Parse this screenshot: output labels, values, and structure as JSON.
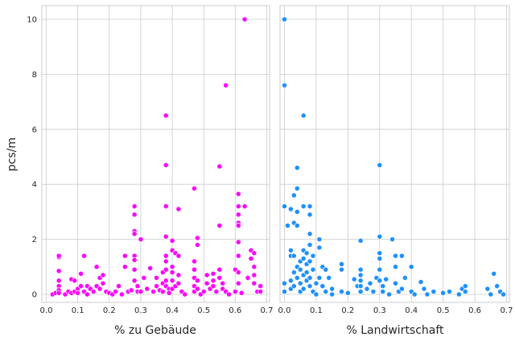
{
  "chart_data": [
    {
      "type": "scatter",
      "xlabel": "% zu Gebäude",
      "ylabel": "pcs/m",
      "xlim": [
        0.0,
        0.7
      ],
      "ylim": [
        0,
        10
      ],
      "x_ticks": [
        "0.0",
        "0.1",
        "0.2",
        "0.3",
        "0.4",
        "0.5",
        "0.6",
        "0.7"
      ],
      "y_ticks": [
        "0",
        "2",
        "4",
        "6",
        "8",
        "10"
      ],
      "grid": true,
      "color": "#ff00ff",
      "points": [
        [
          0.02,
          0.0
        ],
        [
          0.03,
          0.05
        ],
        [
          0.04,
          1.35
        ],
        [
          0.04,
          1.4
        ],
        [
          0.04,
          0.85
        ],
        [
          0.04,
          0.5
        ],
        [
          0.04,
          0.3
        ],
        [
          0.04,
          0.15
        ],
        [
          0.04,
          0.05
        ],
        [
          0.06,
          0.0
        ],
        [
          0.07,
          0.1
        ],
        [
          0.08,
          0.55
        ],
        [
          0.08,
          0.05
        ],
        [
          0.09,
          0.1
        ],
        [
          0.09,
          0.5
        ],
        [
          0.1,
          0.2
        ],
        [
          0.1,
          0.05
        ],
        [
          0.11,
          0.3
        ],
        [
          0.11,
          0.75
        ],
        [
          0.12,
          1.4
        ],
        [
          0.12,
          0.1
        ],
        [
          0.13,
          0.3
        ],
        [
          0.13,
          0.0
        ],
        [
          0.14,
          0.2
        ],
        [
          0.15,
          0.1
        ],
        [
          0.16,
          1.0
        ],
        [
          0.16,
          0.3
        ],
        [
          0.17,
          0.6
        ],
        [
          0.17,
          0.2
        ],
        [
          0.18,
          0.7
        ],
        [
          0.18,
          0.4
        ],
        [
          0.19,
          0.1
        ],
        [
          0.2,
          0.05
        ],
        [
          0.21,
          0.0
        ],
        [
          0.22,
          0.1
        ],
        [
          0.23,
          0.3
        ],
        [
          0.24,
          0.0
        ],
        [
          0.25,
          1.4
        ],
        [
          0.25,
          1.0
        ],
        [
          0.26,
          0.1
        ],
        [
          0.27,
          0.15
        ],
        [
          0.28,
          3.2
        ],
        [
          0.28,
          2.9
        ],
        [
          0.28,
          2.3
        ],
        [
          0.28,
          2.2
        ],
        [
          0.28,
          1.4
        ],
        [
          0.28,
          1.25
        ],
        [
          0.28,
          0.9
        ],
        [
          0.28,
          0.5
        ],
        [
          0.29,
          0.3
        ],
        [
          0.29,
          0.1
        ],
        [
          0.3,
          0.1
        ],
        [
          0.3,
          2.0
        ],
        [
          0.31,
          0.6
        ],
        [
          0.32,
          0.2
        ],
        [
          0.33,
          0.95
        ],
        [
          0.34,
          0.1
        ],
        [
          0.35,
          0.3
        ],
        [
          0.35,
          0.6
        ],
        [
          0.36,
          0.15
        ],
        [
          0.37,
          0.8
        ],
        [
          0.37,
          0.4
        ],
        [
          0.37,
          0.1
        ],
        [
          0.38,
          6.5
        ],
        [
          0.38,
          4.7
        ],
        [
          0.38,
          3.2
        ],
        [
          0.38,
          2.1
        ],
        [
          0.38,
          1.4
        ],
        [
          0.38,
          1.2
        ],
        [
          0.38,
          0.9
        ],
        [
          0.38,
          0.5
        ],
        [
          0.38,
          0.3
        ],
        [
          0.39,
          0.2
        ],
        [
          0.39,
          0.05
        ],
        [
          0.4,
          1.95
        ],
        [
          0.4,
          1.6
        ],
        [
          0.4,
          1.0
        ],
        [
          0.4,
          0.8
        ],
        [
          0.4,
          0.5
        ],
        [
          0.4,
          0.2
        ],
        [
          0.41,
          1.5
        ],
        [
          0.41,
          0.3
        ],
        [
          0.42,
          3.1
        ],
        [
          0.42,
          1.4
        ],
        [
          0.42,
          0.7
        ],
        [
          0.42,
          0.4
        ],
        [
          0.43,
          0.1
        ],
        [
          0.44,
          0.0
        ],
        [
          0.47,
          3.85
        ],
        [
          0.47,
          1.2
        ],
        [
          0.47,
          0.9
        ],
        [
          0.47,
          0.6
        ],
        [
          0.47,
          0.3
        ],
        [
          0.47,
          0.1
        ],
        [
          0.48,
          2.05
        ],
        [
          0.48,
          1.8
        ],
        [
          0.48,
          0.5
        ],
        [
          0.48,
          0.2
        ],
        [
          0.49,
          0.0
        ],
        [
          0.5,
          0.1
        ],
        [
          0.51,
          0.7
        ],
        [
          0.51,
          0.4
        ],
        [
          0.52,
          0.2
        ],
        [
          0.53,
          0.75
        ],
        [
          0.53,
          0.5
        ],
        [
          0.53,
          0.3
        ],
        [
          0.54,
          0.1
        ],
        [
          0.55,
          4.65
        ],
        [
          0.55,
          2.5
        ],
        [
          0.55,
          0.9
        ],
        [
          0.55,
          0.6
        ],
        [
          0.56,
          0.2
        ],
        [
          0.56,
          0.4
        ],
        [
          0.57,
          7.6
        ],
        [
          0.57,
          0.1
        ],
        [
          0.58,
          0.0
        ],
        [
          0.6,
          0.9
        ],
        [
          0.6,
          0.1
        ],
        [
          0.61,
          3.65
        ],
        [
          0.61,
          3.2
        ],
        [
          0.61,
          2.9
        ],
        [
          0.61,
          2.6
        ],
        [
          0.61,
          2.5
        ],
        [
          0.61,
          1.9
        ],
        [
          0.61,
          1.4
        ],
        [
          0.61,
          0.8
        ],
        [
          0.61,
          0.4
        ],
        [
          0.62,
          0.05
        ],
        [
          0.63,
          10.0
        ],
        [
          0.63,
          3.2
        ],
        [
          0.64,
          0.6
        ],
        [
          0.65,
          1.6
        ],
        [
          0.65,
          1.3
        ],
        [
          0.66,
          1.5
        ],
        [
          0.66,
          1.0
        ],
        [
          0.66,
          0.7
        ],
        [
          0.66,
          0.4
        ],
        [
          0.67,
          0.1
        ],
        [
          0.68,
          0.3
        ],
        [
          0.68,
          0.1
        ]
      ]
    },
    {
      "type": "scatter",
      "xlabel": "% Landwirtschaft",
      "ylabel": "",
      "xlim": [
        0.0,
        0.7
      ],
      "ylim": [
        0,
        10
      ],
      "x_ticks": [
        "0.0",
        "0.1",
        "0.2",
        "0.3",
        "0.4",
        "0.5",
        "0.6",
        "0.7"
      ],
      "grid": true,
      "color": "#1e90ff",
      "points": [
        [
          0.0,
          10.0
        ],
        [
          0.0,
          7.6
        ],
        [
          0.0,
          3.2
        ],
        [
          0.0,
          0.4
        ],
        [
          0.0,
          0.1
        ],
        [
          0.01,
          2.5
        ],
        [
          0.02,
          3.1
        ],
        [
          0.02,
          1.6
        ],
        [
          0.02,
          1.4
        ],
        [
          0.02,
          0.5
        ],
        [
          0.02,
          0.2
        ],
        [
          0.03,
          3.6
        ],
        [
          0.03,
          2.6
        ],
        [
          0.03,
          1.4
        ],
        [
          0.03,
          0.8
        ],
        [
          0.03,
          0.3
        ],
        [
          0.04,
          4.6
        ],
        [
          0.04,
          3.85
        ],
        [
          0.04,
          3.0
        ],
        [
          0.04,
          2.5
        ],
        [
          0.04,
          1.0
        ],
        [
          0.04,
          0.6
        ],
        [
          0.05,
          1.2
        ],
        [
          0.05,
          0.9
        ],
        [
          0.05,
          0.4
        ],
        [
          0.05,
          0.1
        ],
        [
          0.06,
          6.5
        ],
        [
          0.06,
          3.2
        ],
        [
          0.06,
          1.6
        ],
        [
          0.06,
          1.3
        ],
        [
          0.06,
          0.7
        ],
        [
          0.06,
          0.2
        ],
        [
          0.07,
          1.5
        ],
        [
          0.07,
          1.1
        ],
        [
          0.07,
          0.8
        ],
        [
          0.07,
          0.5
        ],
        [
          0.08,
          2.9
        ],
        [
          0.08,
          3.2
        ],
        [
          0.08,
          2.2
        ],
        [
          0.08,
          1.8
        ],
        [
          0.08,
          1.2
        ],
        [
          0.08,
          0.6
        ],
        [
          0.08,
          0.3
        ],
        [
          0.09,
          1.4
        ],
        [
          0.09,
          0.9
        ],
        [
          0.09,
          0.1
        ],
        [
          0.1,
          0.4
        ],
        [
          0.1,
          0.0
        ],
        [
          0.11,
          2.0
        ],
        [
          0.11,
          1.7
        ],
        [
          0.11,
          0.6
        ],
        [
          0.12,
          1.0
        ],
        [
          0.12,
          0.3
        ],
        [
          0.13,
          0.9
        ],
        [
          0.13,
          0.1
        ],
        [
          0.14,
          0.6
        ],
        [
          0.15,
          0.2
        ],
        [
          0.15,
          0.0
        ],
        [
          0.18,
          1.1
        ],
        [
          0.18,
          0.9
        ],
        [
          0.18,
          0.1
        ],
        [
          0.2,
          0.05
        ],
        [
          0.22,
          0.55
        ],
        [
          0.23,
          0.3
        ],
        [
          0.24,
          1.95
        ],
        [
          0.24,
          0.9
        ],
        [
          0.24,
          0.7
        ],
        [
          0.24,
          0.5
        ],
        [
          0.24,
          0.3
        ],
        [
          0.24,
          0.1
        ],
        [
          0.26,
          0.2
        ],
        [
          0.27,
          0.4
        ],
        [
          0.28,
          0.1
        ],
        [
          0.29,
          0.6
        ],
        [
          0.3,
          4.7
        ],
        [
          0.3,
          2.1
        ],
        [
          0.3,
          1.5
        ],
        [
          0.3,
          1.3
        ],
        [
          0.3,
          0.9
        ],
        [
          0.3,
          0.5
        ],
        [
          0.31,
          0.3
        ],
        [
          0.31,
          0.1
        ],
        [
          0.32,
          0.55
        ],
        [
          0.33,
          0.0
        ],
        [
          0.34,
          2.0
        ],
        [
          0.35,
          1.4
        ],
        [
          0.35,
          1.0
        ],
        [
          0.35,
          0.4
        ],
        [
          0.36,
          0.1
        ],
        [
          0.37,
          1.4
        ],
        [
          0.37,
          0.2
        ],
        [
          0.38,
          0.6
        ],
        [
          0.4,
          1.0
        ],
        [
          0.4,
          0.1
        ],
        [
          0.41,
          0.0
        ],
        [
          0.43,
          0.45
        ],
        [
          0.44,
          0.2
        ],
        [
          0.45,
          0.0
        ],
        [
          0.47,
          0.1
        ],
        [
          0.5,
          0.05
        ],
        [
          0.52,
          0.1
        ],
        [
          0.55,
          0.0
        ],
        [
          0.56,
          0.2
        ],
        [
          0.57,
          0.1
        ],
        [
          0.57,
          0.3
        ],
        [
          0.64,
          0.2
        ],
        [
          0.65,
          0.0
        ],
        [
          0.66,
          0.75
        ],
        [
          0.67,
          0.3
        ],
        [
          0.68,
          0.1
        ],
        [
          0.69,
          0.0
        ]
      ]
    }
  ]
}
